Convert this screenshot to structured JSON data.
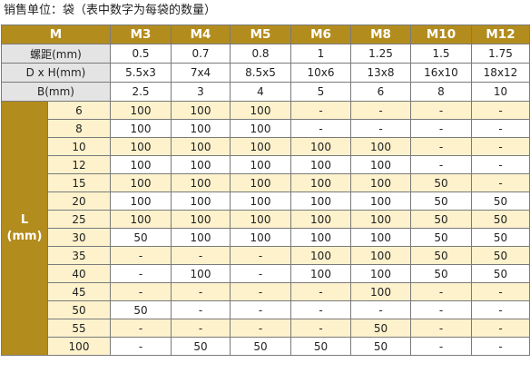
{
  "caption": "销售单位：袋（表中数字为每袋的数量）",
  "header": {
    "corner": "M",
    "sizes": [
      "M3",
      "M4",
      "M5",
      "M6",
      "M8",
      "M10",
      "M12"
    ]
  },
  "attributes": [
    {
      "label": "螺距(mm)",
      "values": [
        "0.5",
        "0.7",
        "0.8",
        "1",
        "1.25",
        "1.5",
        "1.75"
      ]
    },
    {
      "label": "D x H(mm)",
      "values": [
        "5.5x3",
        "7x4",
        "8.5x5",
        "10x6",
        "13x8",
        "16x10",
        "18x12"
      ]
    },
    {
      "label": "B(mm)",
      "values": [
        "2.5",
        "3",
        "4",
        "5",
        "6",
        "8",
        "10"
      ]
    }
  ],
  "length_header": {
    "line1": "L",
    "line2": "(mm)"
  },
  "rows": [
    {
      "L": "6",
      "values": [
        "100",
        "100",
        "100",
        "-",
        "-",
        "-",
        "-"
      ]
    },
    {
      "L": "8",
      "values": [
        "100",
        "100",
        "100",
        "-",
        "-",
        "-",
        "-"
      ]
    },
    {
      "L": "10",
      "values": [
        "100",
        "100",
        "100",
        "100",
        "100",
        "-",
        "-"
      ]
    },
    {
      "L": "12",
      "values": [
        "100",
        "100",
        "100",
        "100",
        "100",
        "-",
        "-"
      ]
    },
    {
      "L": "15",
      "values": [
        "100",
        "100",
        "100",
        "100",
        "100",
        "50",
        "-"
      ]
    },
    {
      "L": "20",
      "values": [
        "100",
        "100",
        "100",
        "100",
        "100",
        "50",
        "50"
      ]
    },
    {
      "L": "25",
      "values": [
        "100",
        "100",
        "100",
        "100",
        "100",
        "50",
        "50"
      ]
    },
    {
      "L": "30",
      "values": [
        "50",
        "100",
        "100",
        "100",
        "100",
        "50",
        "50"
      ]
    },
    {
      "L": "35",
      "values": [
        "-",
        "-",
        "-",
        "100",
        "100",
        "50",
        "50"
      ]
    },
    {
      "L": "40",
      "values": [
        "-",
        "100",
        "-",
        "100",
        "100",
        "50",
        "50"
      ]
    },
    {
      "L": "45",
      "values": [
        "-",
        "-",
        "-",
        "-",
        "100",
        "-",
        "-"
      ]
    },
    {
      "L": "50",
      "values": [
        "50",
        "-",
        "-",
        "-",
        "-",
        "-",
        "-"
      ]
    },
    {
      "L": "55",
      "values": [
        "-",
        "-",
        "-",
        "-",
        "50",
        "-",
        "-"
      ]
    },
    {
      "L": "100",
      "values": [
        "-",
        "50",
        "50",
        "50",
        "50",
        "-",
        "-"
      ]
    }
  ],
  "colors": {
    "header": "#b38c1e",
    "label_gray": "#e4e4e4",
    "highlight_yellow": "#fdf2cc"
  }
}
